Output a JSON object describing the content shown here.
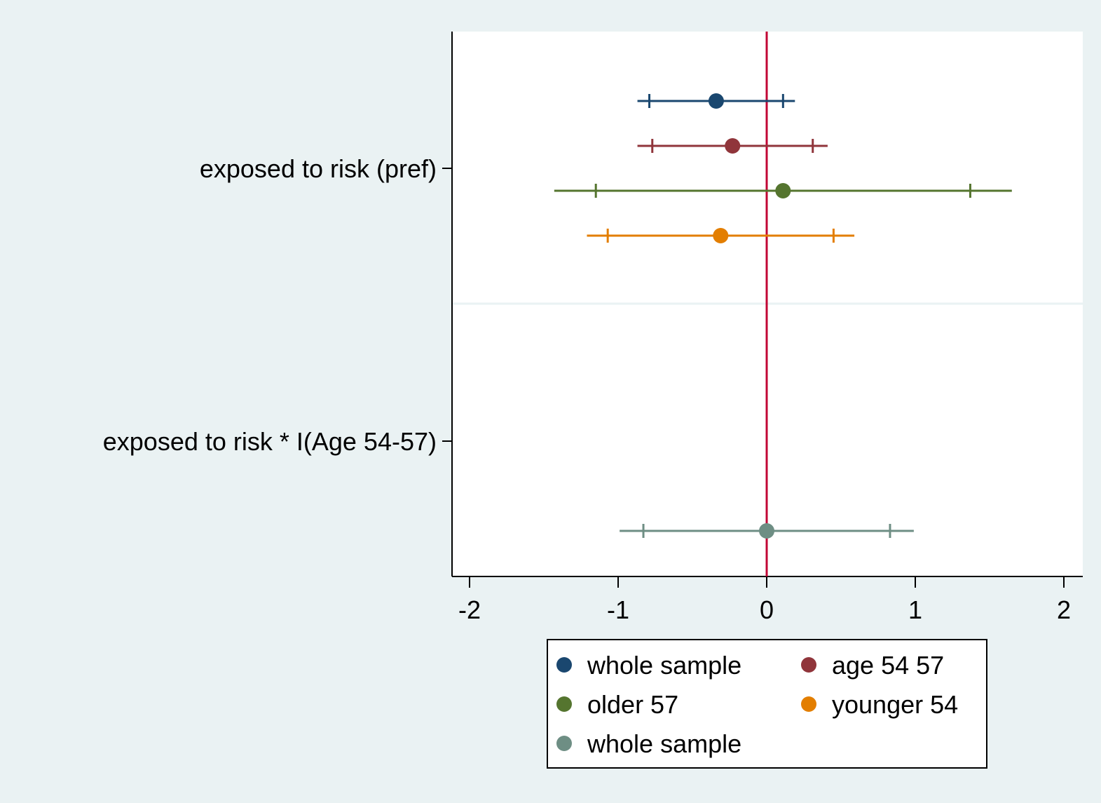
{
  "colors": {
    "background_outer": "#EAF2F3",
    "plot_background": "#FFFFFF",
    "reference_line": "#C10534",
    "separator_line": "#EAF2F3"
  },
  "chart_data": {
    "type": "coefficient_plot",
    "title": "",
    "xlabel": "",
    "ylabel": "",
    "xlim": [
      -2.12,
      2.12
    ],
    "x_ticks": [
      {
        "value": -2,
        "label": "-2"
      },
      {
        "value": -1,
        "label": "-1"
      },
      {
        "value": 0,
        "label": "0"
      },
      {
        "value": 1,
        "label": "1"
      },
      {
        "value": 2,
        "label": "2"
      }
    ],
    "reference_x": 0,
    "grid": false,
    "categories": [
      {
        "label": "exposed to risk (pref)"
      },
      {
        "label": "exposed to risk * I(Age 54-57)"
      }
    ],
    "series": [
      {
        "name": "whole sample",
        "color": "#1A476F",
        "category": 0,
        "offset": -1.5,
        "estimate": -0.34,
        "ci90": [
          -0.79,
          0.11
        ],
        "ci95": [
          -0.87,
          0.19
        ]
      },
      {
        "name": "age 54 57",
        "color": "#90353B",
        "category": 0,
        "offset": -0.5,
        "estimate": -0.23,
        "ci90": [
          -0.77,
          0.31
        ],
        "ci95": [
          -0.87,
          0.41
        ]
      },
      {
        "name": "older 57",
        "color": "#55752F",
        "category": 0,
        "offset": 0.5,
        "estimate": 0.11,
        "ci90": [
          -1.15,
          1.37
        ],
        "ci95": [
          -1.43,
          1.65
        ]
      },
      {
        "name": "younger 54",
        "color": "#E37E00",
        "category": 0,
        "offset": 1.5,
        "estimate": -0.31,
        "ci90": [
          -1.07,
          0.45
        ],
        "ci95": [
          -1.21,
          0.59
        ]
      },
      {
        "name": "whole sample",
        "color": "#6E8E84",
        "category": 1,
        "offset": 2.0,
        "estimate": 0.0,
        "ci90": [
          -0.83,
          0.83
        ],
        "ci95": [
          -0.99,
          0.99
        ]
      }
    ],
    "legend": {
      "placement": "bottom",
      "columns": 2,
      "boxed": true
    }
  }
}
